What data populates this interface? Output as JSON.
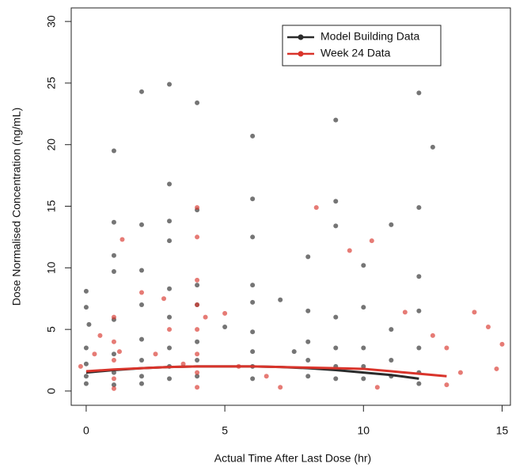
{
  "chart_data": {
    "type": "scatter",
    "x_label": "Actual Time After Last Dose (hr)",
    "y_label": "Dose Normalised Concentration (ng/mL)",
    "xlim": [
      -0.54,
      15.3
    ],
    "ylim": [
      -1.16,
      31.1
    ],
    "xticks": [
      0,
      5,
      10,
      15
    ],
    "yticks": [
      0,
      5,
      10,
      15,
      20,
      25,
      30
    ],
    "legend": "top-right",
    "series": [
      {
        "name": "Model Building Data",
        "color": "#2b2b2b",
        "x": [
          2,
          3,
          4,
          6,
          9,
          12,
          12.5,
          1,
          3,
          6,
          9,
          12,
          1,
          2,
          3,
          11,
          8,
          10,
          6,
          0,
          0,
          0.1,
          0,
          0,
          0,
          0,
          1,
          1,
          1,
          1,
          1,
          1,
          2,
          2,
          2,
          2,
          2,
          2,
          3,
          3,
          3,
          3,
          3,
          3,
          4,
          4,
          4,
          4,
          4,
          4,
          6,
          6,
          6,
          6,
          6,
          6,
          8,
          8,
          8,
          8,
          9,
          9,
          9,
          9,
          9,
          10,
          10,
          10,
          10,
          11,
          11,
          11,
          12,
          12,
          12,
          12,
          12,
          7,
          5,
          7.5
        ],
        "values": [
          24.3,
          24.9,
          23.4,
          20.7,
          22,
          24.2,
          19.8,
          19.5,
          16.8,
          15.6,
          15.4,
          14.9,
          13.7,
          13.5,
          13.8,
          13.5,
          10.9,
          10.2,
          12.5,
          8.1,
          6.8,
          5.4,
          3.5,
          2.2,
          1.2,
          0.6,
          11,
          9.7,
          5.8,
          3,
          1.5,
          0.5,
          9.8,
          7,
          4.2,
          2.5,
          1.2,
          0.6,
          12.2,
          8.3,
          6,
          3.5,
          2,
          1,
          14.7,
          8.6,
          7,
          4,
          2.5,
          1.2,
          8.6,
          7.2,
          4.8,
          3.2,
          2,
          1,
          6.5,
          4,
          2.5,
          1.2,
          13.4,
          6,
          3.5,
          2,
          1,
          6.8,
          3.5,
          2,
          1,
          5,
          2.5,
          1.2,
          9.3,
          6.5,
          3.5,
          1.5,
          0.6,
          7.4,
          5.2,
          3.2
        ],
        "trend_x": [
          0,
          1,
          2,
          3,
          4,
          5,
          6,
          7,
          8,
          9,
          10,
          11,
          12
        ],
        "trend_values": [
          1.5,
          1.7,
          1.85,
          1.95,
          2.0,
          2.0,
          2.0,
          1.95,
          1.85,
          1.7,
          1.5,
          1.3,
          1.0
        ]
      },
      {
        "name": "Week 24 Data",
        "color": "#d9342b",
        "x": [
          1,
          1,
          1,
          1,
          1,
          1.3,
          1.2,
          2,
          2.5,
          3,
          4,
          4,
          4,
          4,
          4,
          4,
          4,
          4,
          4.3,
          5,
          5.5,
          7,
          8.3,
          9.5,
          10.3,
          10.5,
          11.5,
          12.5,
          13,
          13.5,
          14,
          14.5,
          15,
          14.8,
          13,
          0.5,
          0.3,
          -0.2,
          3.5,
          6.5,
          2.8
        ],
        "values": [
          6,
          4,
          2.5,
          1,
          0.2,
          12.3,
          3.2,
          8,
          3,
          5,
          14.9,
          12.5,
          9,
          7,
          5,
          3,
          1.5,
          0.3,
          6,
          6.3,
          2,
          0.3,
          14.9,
          11.4,
          12.2,
          0.3,
          6.4,
          4.5,
          3.5,
          1.5,
          6.4,
          5.2,
          3.8,
          1.8,
          0.5,
          4.5,
          3,
          2,
          2.2,
          1.2,
          7.5
        ],
        "trend_x": [
          0,
          1,
          2,
          3,
          4,
          5,
          6,
          7,
          8,
          9,
          10,
          11,
          12,
          13
        ],
        "trend_values": [
          1.6,
          1.75,
          1.85,
          1.95,
          2.0,
          2.0,
          2.0,
          1.95,
          1.9,
          1.85,
          1.8,
          1.6,
          1.4,
          1.2
        ]
      }
    ]
  }
}
